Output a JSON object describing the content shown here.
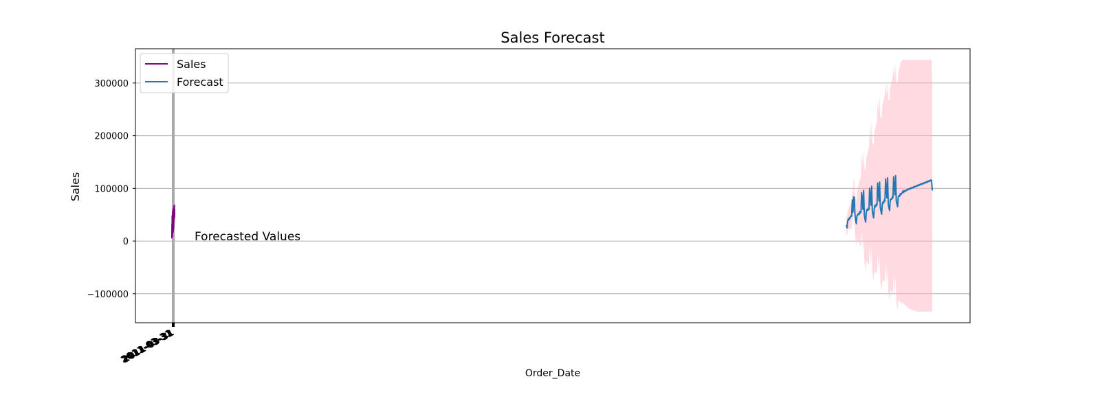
{
  "chart_data": {
    "type": "line",
    "title": "Sales Forecast",
    "xlabel": "Order_Date",
    "ylabel": "Sales",
    "ylim": [
      -155000,
      365000
    ],
    "yticks": [
      -100000,
      0,
      100000,
      200000,
      300000
    ],
    "ytick_labels": [
      "−100000",
      "0",
      "100000",
      "200000",
      "300000"
    ],
    "xtick_label": "2011-03-31",
    "grid": "horizontal",
    "legend_placement": "upper-left",
    "annotation": "Forecasted Values",
    "colors": {
      "sales": "#800080",
      "forecast": "#1f77b4",
      "band": "#ffb6c1",
      "vline": "#a9a9a9"
    },
    "legend": [
      "Sales",
      "Forecast"
    ],
    "series": [
      {
        "name": "Sales",
        "x": [
          0,
          0.04,
          0.08,
          0.12,
          0.16,
          0.2,
          0.24,
          0.28,
          0.32,
          0.36,
          0.4,
          0.44,
          0.48,
          0.52,
          0.56,
          0.6,
          0.64,
          0.68,
          0.72,
          0.76,
          0.8,
          0.84,
          0.88,
          0.92,
          0.96,
          1.0
        ],
        "values": [
          5000,
          32000,
          12000,
          48000,
          9000,
          40000,
          22000,
          55000,
          15000,
          45000,
          28000,
          60000,
          18000,
          50000,
          30000,
          62000,
          25000,
          58000,
          35000,
          66000,
          40000,
          64000,
          52000,
          68000,
          45000,
          60000
        ]
      },
      {
        "name": "Forecast",
        "x": [
          0,
          1,
          2,
          3,
          4,
          5,
          6,
          7,
          8,
          9,
          10,
          11,
          12,
          13,
          14,
          15,
          16,
          17,
          18,
          19,
          20,
          21,
          22,
          23,
          24,
          25,
          26,
          27,
          28,
          29,
          30,
          31,
          32,
          33,
          34,
          35,
          36,
          37,
          38,
          39,
          40,
          41,
          42,
          43,
          44,
          45,
          46,
          47,
          48,
          49,
          50,
          51,
          52,
          53,
          54,
          55,
          56,
          57,
          58,
          59,
          60,
          61,
          62,
          63,
          64,
          65,
          66,
          67,
          68,
          69,
          70,
          71,
          72,
          73,
          74,
          75,
          76,
          77,
          78,
          79,
          80,
          81,
          82,
          83,
          84,
          85,
          86,
          87,
          88,
          89,
          90,
          91,
          92,
          93,
          94,
          95,
          96,
          97,
          98,
          99,
          100,
          101,
          102,
          103,
          104,
          105,
          106,
          107,
          108,
          109,
          110,
          111,
          112,
          113,
          114,
          115,
          116,
          117,
          118,
          119,
          120,
          121,
          122,
          123,
          124,
          125,
          126,
          127,
          128,
          129
        ],
        "values": [
          30000,
          25000,
          38000,
          42000,
          40000,
          45000,
          44000,
          48000,
          47000,
          78000,
          55000,
          84000,
          83000,
          50000,
          40000,
          33000,
          48000,
          50000,
          52000,
          50000,
          56000,
          53000,
          55000,
          92000,
          80000,
          60000,
          96000,
          50000,
          42000,
          36000,
          55000,
          60000,
          58000,
          62000,
          60000,
          100000,
          85000,
          68000,
          104000,
          58000,
          50000,
          44000,
          62000,
          68000,
          65000,
          70000,
          68000,
          110000,
          95000,
          76000,
          112000,
          64000,
          57000,
          51000,
          70000,
          74000,
          72000,
          78000,
          76000,
          118000,
          100000,
          82000,
          120000,
          70000,
          63000,
          58000,
          78000,
          80000,
          79000,
          84000,
          82000,
          122000,
          105000,
          88000,
          124000,
          76000,
          70000,
          65000,
          84000,
          86000,
          85000,
          90000,
          88000,
          90000,
          92000,
          95000,
          92000,
          96000,
          94000,
          95000,
          96000,
          98000,
          97000,
          99000,
          98000,
          100000,
          99000,
          101000,
          100000,
          102000,
          101000,
          103000,
          102000,
          104000,
          103000,
          105000,
          104000,
          106000,
          105000,
          107000,
          106000,
          108000,
          107000,
          109000,
          108000,
          110000,
          109000,
          111000,
          110000,
          112000,
          111000,
          113000,
          112000,
          114000,
          113000,
          115000,
          114000,
          116000,
          115000,
          96000
        ],
        "lower": [
          12000,
          10000,
          20000,
          24000,
          20000,
          25000,
          22000,
          26000,
          23000,
          50000,
          28000,
          52000,
          48000,
          14000,
          2000,
          -8000,
          4000,
          2000,
          0,
          -6000,
          -2000,
          -10000,
          -8000,
          20000,
          2000,
          -20000,
          10000,
          -38000,
          -48000,
          -58000,
          -40000,
          -38000,
          -44000,
          -42000,
          -46000,
          -10000,
          -26000,
          -46000,
          -10000,
          -58000,
          -68000,
          -76000,
          -60000,
          -56000,
          -62000,
          -58000,
          -62000,
          -24000,
          -42000,
          -62000,
          -28000,
          -78000,
          -86000,
          -94000,
          -76000,
          -74000,
          -78000,
          -74000,
          -78000,
          -40000,
          -60000,
          -80000,
          -44000,
          -96000,
          -104000,
          -112000,
          -94000,
          -94000,
          -98000,
          -96000,
          -100000,
          -62000,
          -82000,
          -102000,
          -66000,
          -116000,
          -124000,
          -130000,
          -112000,
          -112000,
          -116000,
          -114000,
          -118000,
          -118000,
          -118000,
          -116000,
          -120000,
          -118000,
          -122000,
          -122000,
          -124000,
          -124000,
          -126000,
          -126000,
          -128000,
          -128000,
          -128000,
          -130000,
          -130000,
          -130000,
          -132000,
          -132000,
          -132000,
          -132000,
          -132000,
          -134000,
          -134000,
          -134000,
          -134000,
          -134000,
          -134000,
          -134000,
          -134000,
          -134000,
          -134000,
          -134000,
          -134000,
          -134000,
          -134000,
          -134000,
          -134000,
          -134000,
          -134000,
          -134000,
          -134000,
          -134000,
          -134000,
          -134000,
          -134000,
          -134000
        ],
        "upper": [
          48000,
          42000,
          58000,
          62000,
          62000,
          68000,
          68000,
          74000,
          74000,
          108000,
          84000,
          116000,
          118000,
          88000,
          80000,
          76000,
          94000,
          100000,
          106000,
          108000,
          116000,
          118000,
          122000,
          164000,
          156000,
          140000,
          180000,
          140000,
          136000,
          134000,
          156000,
          164000,
          166000,
          174000,
          176000,
          216000,
          206000,
          190000,
          230000,
          188000,
          184000,
          182000,
          204000,
          214000,
          214000,
          224000,
          226000,
          266000,
          256000,
          240000,
          278000,
          236000,
          234000,
          232000,
          256000,
          264000,
          266000,
          276000,
          278000,
          300000,
          290000,
          276000,
          306000,
          270000,
          268000,
          266000,
          290000,
          298000,
          300000,
          310000,
          314000,
          330000,
          320000,
          310000,
          340000,
          300000,
          300000,
          300000,
          320000,
          326000,
          330000,
          336000,
          340000,
          342000,
          344000,
          344000,
          344000,
          344000,
          344000,
          344000,
          344000,
          344000,
          344000,
          344000,
          344000,
          344000,
          344000,
          344000,
          344000,
          344000,
          344000,
          344000,
          344000,
          344000,
          344000,
          344000,
          344000,
          344000,
          344000,
          344000,
          344000,
          344000,
          344000,
          344000,
          344000,
          344000,
          344000,
          344000,
          344000,
          344000,
          344000,
          344000,
          344000,
          344000,
          344000,
          344000,
          344000,
          344000,
          344000,
          300000
        ]
      }
    ]
  }
}
